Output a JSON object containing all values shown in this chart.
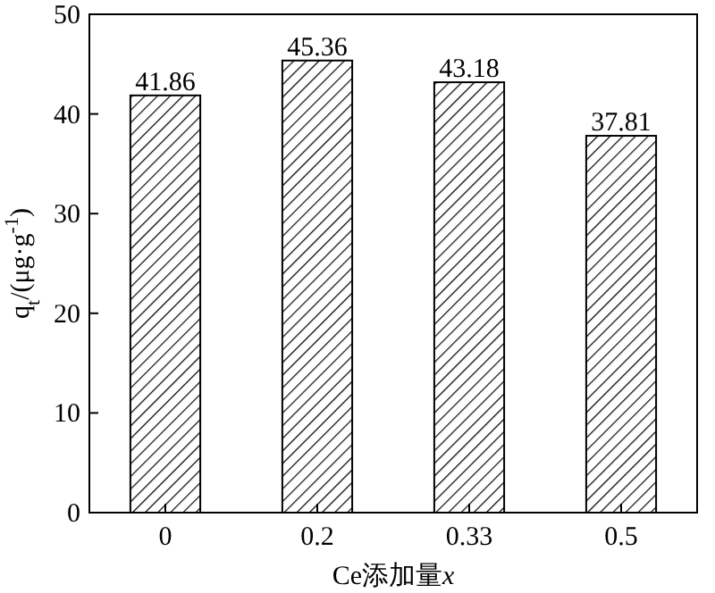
{
  "chart_data": {
    "type": "bar",
    "xlabel": "Ce添加量x",
    "ylabel": "q$_{t}$/(μg·g$^{-1}$)",
    "categories": [
      "0",
      "0.2",
      "0.33",
      "0.5"
    ],
    "values": [
      41.86,
      45.36,
      43.18,
      37.81
    ],
    "color": "#000000",
    "data_labels": true,
    "ylim": [
      0,
      50
    ],
    "yticks": [
      0,
      10,
      20,
      30,
      40,
      50
    ]
  }
}
